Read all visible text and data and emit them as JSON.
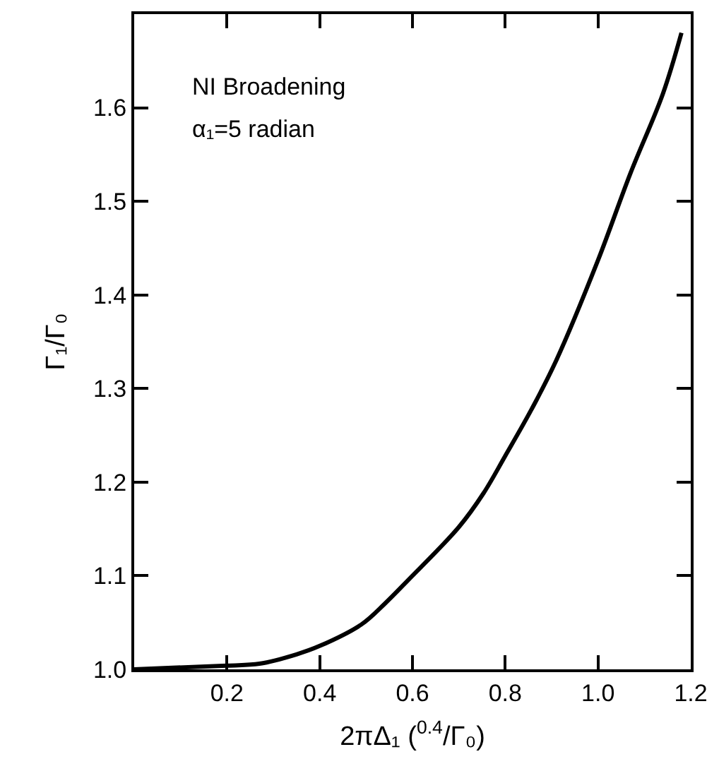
{
  "chart_data": {
    "type": "line",
    "xlabel": "2πΔ₁ ($^{0.4}$/Γ₀)",
    "ylabel": "Γ₁/Γ₀",
    "annotations": [
      "NI Broadening",
      "α₁=5 radian"
    ],
    "x": [
      0,
      0.2,
      0.27,
      0.35,
      0.4,
      0.49,
      0.54,
      0.59,
      0.7,
      0.753,
      0.8,
      0.857,
      0.91,
      1.0,
      1.07,
      1.14,
      1.18
    ],
    "series": [
      {
        "color": "#000000",
        "values": [
          1.0,
          1.004,
          1.006,
          1.016,
          1.025,
          1.048,
          1.07,
          1.095,
          1.152,
          1.188,
          1.228,
          1.278,
          1.33,
          1.437,
          1.53,
          1.615,
          1.68
        ]
      }
    ],
    "xlim": [
      0,
      1.2
    ],
    "ylim": [
      1.0,
      1.7
    ],
    "xticks": [
      0.2,
      0.4,
      0.6,
      0.8,
      {
        "value": 1.0,
        "label": "1.0"
      },
      1.2
    ],
    "yticks": [
      {
        "value": 1.0,
        "label": "1.0"
      },
      1.1,
      1.2,
      1.3,
      1.4,
      1.5,
      1.6
    ],
    "marker": "none",
    "line_style": "solid"
  }
}
